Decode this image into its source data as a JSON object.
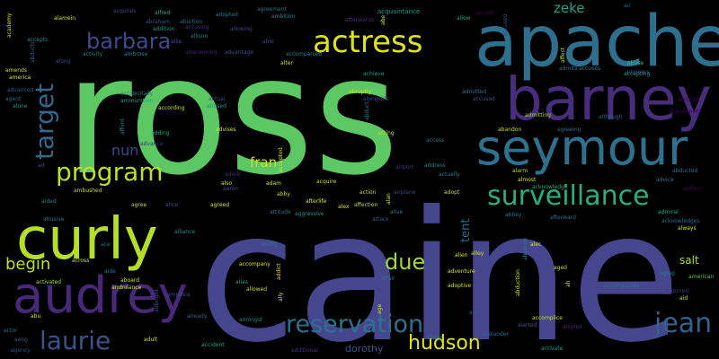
{
  "words": [
    {
      "text": "ross",
      "color": "#5cc863"
    },
    {
      "text": "caine",
      "color": "#46468f"
    },
    {
      "text": "apache",
      "color": "#2e6f8e"
    },
    {
      "text": "barney",
      "color": "#472d7b"
    },
    {
      "text": "seymour",
      "color": "#2d718e"
    },
    {
      "text": "curly",
      "color": "#b5de2b"
    },
    {
      "text": "audrey",
      "color": "#482878"
    },
    {
      "text": "actress",
      "color": "#dde318"
    },
    {
      "text": "surveillance",
      "color": "#28ae80"
    },
    {
      "text": "program",
      "color": "#bddf26"
    },
    {
      "text": "barbara",
      "color": "#3e4a89"
    },
    {
      "text": "target",
      "color": "#31688e"
    },
    {
      "text": "reservation",
      "color": "#2c728e"
    },
    {
      "text": "laurie",
      "color": "#3b528b"
    },
    {
      "text": "hudson",
      "color": "#e5e419"
    },
    {
      "text": "jean",
      "color": "#355f8d"
    },
    {
      "text": "due",
      "color": "#9fda3a"
    },
    {
      "text": "begin",
      "color": "#c0df25"
    },
    {
      "text": "nun",
      "color": "#3e4989"
    },
    {
      "text": "fran",
      "color": "#d2e21b"
    },
    {
      "text": "zeke",
      "color": "#20a386"
    },
    {
      "text": "salt",
      "color": "#aadc32"
    },
    {
      "text": "tent",
      "color": "#2f6c8e"
    },
    {
      "text": "dorothy",
      "color": "#3b528b"
    },
    {
      "text": "aircraft",
      "color": "#440154"
    },
    {
      "text": "abuse",
      "color": "#22a884"
    },
    {
      "text": "admirers",
      "color": "#433e85"
    },
    {
      "text": "abbey",
      "color": "#2a788e"
    },
    {
      "text": "acquires",
      "color": "#3f4889"
    },
    {
      "text": "agreement",
      "color": "#2d708e"
    },
    {
      "text": "acquaintance",
      "color": "#1f988b"
    },
    {
      "text": "ambition",
      "color": "#25848e"
    },
    {
      "text": "accept",
      "color": "#440154"
    },
    {
      "text": "allow",
      "color": "#22a884"
    },
    {
      "text": "afterwards",
      "color": "#46307e"
    },
    {
      "text": "accidentally",
      "color": "#2a788e"
    },
    {
      "text": "ammunition",
      "color": "#1fa188"
    },
    {
      "text": "accompanied",
      "color": "#26828e"
    },
    {
      "text": "advantage",
      "color": "#3b528b"
    },
    {
      "text": "allowing",
      "color": "#3e4989"
    },
    {
      "text": "abandoning",
      "color": "#481d6f"
    },
    {
      "text": "achieve",
      "color": "#1f9f88"
    },
    {
      "text": "admitted",
      "color": "#2c728e"
    },
    {
      "text": "accused",
      "color": "#3b528b"
    },
    {
      "text": "admitting",
      "color": "#a8db34"
    },
    {
      "text": "abandoned",
      "color": "#440154"
    },
    {
      "text": "acquired",
      "color": "#46337f"
    },
    {
      "text": "american",
      "color": "#5ec962"
    },
    {
      "text": "accompanies",
      "color": "#2e6e8e"
    },
    {
      "text": "accompany",
      "color": "#dfe318"
    },
    {
      "text": "adventure",
      "color": "#d8e219"
    },
    {
      "text": "adoptive",
      "color": "#d5e21a"
    },
    {
      "text": "accomplice",
      "color": "#c2df23"
    },
    {
      "text": "alerted",
      "color": "#3b528b"
    },
    {
      "text": "alexander",
      "color": "#2d708e"
    },
    {
      "text": "activate",
      "color": "#1f9a8a"
    },
    {
      "text": "accident",
      "color": "#22a884"
    },
    {
      "text": "additional",
      "color": "#46307e"
    },
    {
      "text": "agency",
      "color": "#39558c"
    },
    {
      "text": "alliance",
      "color": "#25858e"
    },
    {
      "text": "ability",
      "color": "#2d708e"
    },
    {
      "text": "already",
      "color": "#33638d"
    },
    {
      "text": "amongst",
      "color": "#26828e"
    },
    {
      "text": "allowed",
      "color": "#bddf26"
    },
    {
      "text": "ambushed",
      "color": "#c0df25"
    },
    {
      "text": "aggressive",
      "color": "#20928c"
    },
    {
      "text": "affection",
      "color": "#b2dd2d"
    },
    {
      "text": "acknowledge",
      "color": "#26ad81"
    },
    {
      "text": "acknowledges",
      "color": "#2e6e8e"
    },
    {
      "text": "afterward",
      "color": "#2d708e"
    },
    {
      "text": "admiral",
      "color": "#22a884"
    },
    {
      "text": "always",
      "color": "#d0e11c"
    },
    {
      "text": "airfield",
      "color": "#440154"
    },
    {
      "text": "abducted",
      "color": "#2c728e"
    },
    {
      "text": "advice",
      "color": "#29798e"
    },
    {
      "text": "although",
      "color": "#306a8e"
    },
    {
      "text": "accepting",
      "color": "#1f9e89"
    },
    {
      "text": "according",
      "color": "#c8e020"
    },
    {
      "text": "advises",
      "color": "#d2e21b"
    },
    {
      "text": "abused",
      "color": "#21918c"
    },
    {
      "text": "actual",
      "color": "#3e4989"
    },
    {
      "text": "ambrose",
      "color": "#25848e"
    },
    {
      "text": "activity",
      "color": "#2a788e"
    },
    {
      "text": "abraham",
      "color": "#3b528b"
    },
    {
      "text": "abortion",
      "color": "#2d708e"
    },
    {
      "text": "addition",
      "color": "#20928c"
    },
    {
      "text": "accusing",
      "color": "#46307e"
    },
    {
      "text": "alfred",
      "color": "#26ad81"
    },
    {
      "text": "allie",
      "color": "#39558c"
    },
    {
      "text": "allison",
      "color": "#26828e"
    },
    {
      "text": "adopted",
      "color": "#2a788e"
    },
    {
      "text": "alamein",
      "color": "#d8e219"
    },
    {
      "text": "accepts",
      "color": "#25848e"
    },
    {
      "text": "along",
      "color": "#3e4989"
    },
    {
      "text": "amends",
      "color": "#c8e020"
    },
    {
      "text": "america",
      "color": "#d0e11c"
    },
    {
      "text": "advanced",
      "color": "#39558c"
    },
    {
      "text": "agent",
      "color": "#2d708e"
    },
    {
      "text": "alone",
      "color": "#1f988b"
    },
    {
      "text": "adding",
      "color": "#22a884"
    },
    {
      "text": "advance",
      "color": "#46307e"
    },
    {
      "text": "affair",
      "color": "#2e6e8e"
    },
    {
      "text": "aided",
      "color": "#26828e"
    },
    {
      "text": "agree",
      "color": "#bddf26"
    },
    {
      "text": "alice",
      "color": "#3b528b"
    },
    {
      "text": "agreed",
      "color": "#dfe318"
    },
    {
      "text": "abusive",
      "color": "#29798e"
    },
    {
      "text": "ace",
      "color": "#2d708e"
    },
    {
      "text": "across",
      "color": "#d0e11c"
    },
    {
      "text": "aide",
      "color": "#2a788e"
    },
    {
      "text": "aboard",
      "color": "#d5e21a"
    },
    {
      "text": "ambulance",
      "color": "#c2df23"
    },
    {
      "text": "amnesia",
      "color": "#3e4989"
    },
    {
      "text": "activated",
      "color": "#b2dd2d"
    },
    {
      "text": "abu",
      "color": "#d2e21b"
    },
    {
      "text": "actor",
      "color": "#2d708e"
    },
    {
      "text": "aang",
      "color": "#39558c"
    },
    {
      "text": "adult",
      "color": "#c8e020"
    },
    {
      "text": "alias",
      "color": "#22a884"
    },
    {
      "text": "adam",
      "color": "#d8e219"
    },
    {
      "text": "abby",
      "color": "#c0df25"
    },
    {
      "text": "afterlife",
      "color": "#dfe318"
    },
    {
      "text": "attitude",
      "color": "#2d708e"
    },
    {
      "text": "acquire",
      "color": "#bddf26"
    },
    {
      "text": "also",
      "color": "#d2e21b"
    },
    {
      "text": "aaron",
      "color": "#3e4989"
    },
    {
      "text": "admit",
      "color": "#46307e"
    },
    {
      "text": "alex",
      "color": "#dfe318"
    },
    {
      "text": "action",
      "color": "#c2df23"
    },
    {
      "text": "airport",
      "color": "#472d7b"
    },
    {
      "text": "address",
      "color": "#25848e"
    },
    {
      "text": "actually",
      "color": "#29798e"
    },
    {
      "text": "adopt",
      "color": "#bddf26"
    },
    {
      "text": "airplane",
      "color": "#3e4989"
    },
    {
      "text": "alive",
      "color": "#2a788e"
    },
    {
      "text": "attack",
      "color": "#3b528b"
    },
    {
      "text": "alien",
      "color": "#d8e219"
    },
    {
      "text": "alley",
      "color": "#d5e21a"
    },
    {
      "text": "aged",
      "color": "#bddf26"
    },
    {
      "text": "alec",
      "color": "#d2e21b"
    },
    {
      "text": "abandon",
      "color": "#bddf26"
    },
    {
      "text": "almost",
      "color": "#dfe318"
    },
    {
      "text": "alarm",
      "color": "#bddf26"
    },
    {
      "text": "acting",
      "color": "#c0df25"
    },
    {
      "text": "access",
      "color": "#2d708e"
    },
    {
      "text": "abruptly",
      "color": "#d0e11c"
    },
    {
      "text": "alongside",
      "color": "#3e4989"
    },
    {
      "text": "agreeing",
      "color": "#2e6e8e"
    },
    {
      "text": "abuse",
      "color": "#22a884"
    },
    {
      "text": "admits",
      "color": "#2d708e"
    },
    {
      "text": "accuses",
      "color": "#25848e"
    },
    {
      "text": "add",
      "color": "#39558c"
    },
    {
      "text": "alpha",
      "color": "#2d708e"
    },
    {
      "text": "alcohol",
      "color": "#472d7b"
    },
    {
      "text": "ad",
      "color": "#3b528b"
    },
    {
      "text": "aging",
      "color": "#2a788e"
    },
    {
      "text": "aid",
      "color": "#d0e11c"
    },
    {
      "text": "air",
      "color": "#2d708e"
    },
    {
      "text": "able",
      "color": "#3e4989"
    },
    {
      "text": "alter",
      "color": "#c8e020"
    },
    {
      "text": "abe",
      "color": "#d5e21a"
    },
    {
      "text": "alan",
      "color": "#26828e"
    },
    {
      "text": "age",
      "color": "#3b528b"
    },
    {
      "text": "ah",
      "color": "#2d708e"
    },
    {
      "text": "abduction",
      "color": "#d8e219"
    },
    {
      "text": "absence",
      "color": "#d5e21a"
    },
    {
      "text": "ally",
      "color": "#d0e11c"
    },
    {
      "text": "airbright",
      "color": "#c8e020"
    },
    {
      "text": "addict",
      "color": "#2a788e"
    },
    {
      "text": "abducts",
      "color": "#c2df23"
    },
    {
      "text": "accepted",
      "color": "#d2e21b"
    },
    {
      "text": "academy",
      "color": "#39558c"
    },
    {
      "text": "abduct",
      "color": "#dfe318"
    },
    {
      "text": "affect",
      "color": "#c0df25"
    },
    {
      "text": "accused",
      "color": "#3e4989"
    },
    {
      "text": "afford",
      "color": "#472d7b"
    },
    {
      "text": "alternate",
      "color": "#3b528b"
    },
    {
      "text": "avoid",
      "color": "#46307e"
    },
    {
      "text": "avenue",
      "color": "#2d708e"
    },
    {
      "text": "absurd",
      "color": "#d0e11c"
    },
    {
      "text": "activates",
      "color": "#2d708e"
    },
    {
      "text": "align",
      "color": "#c0df25"
    },
    {
      "text": "allied",
      "color": "#bddf26"
    },
    {
      "text": "abdullah",
      "color": "#dfe318"
    },
    {
      "text": "accountable",
      "color": "#25848e"
    },
    {
      "text": "alarming",
      "color": "#3e4989"
    },
    {
      "text": "advised",
      "color": "#2a788e"
    },
    {
      "text": "allowance",
      "color": "#c8e020"
    },
    {
      "text": "alsip",
      "color": "#3b528b"
    },
    {
      "text": "ax",
      "color": "#2d708e"
    },
    {
      "text": "alma",
      "color": "#2d708e"
    },
    {
      "text": "account",
      "color": "#d5e21a"
    },
    {
      "text": "abundant",
      "color": "#3e4989"
    },
    {
      "text": "ashore",
      "color": "#25848e"
    }
  ]
}
